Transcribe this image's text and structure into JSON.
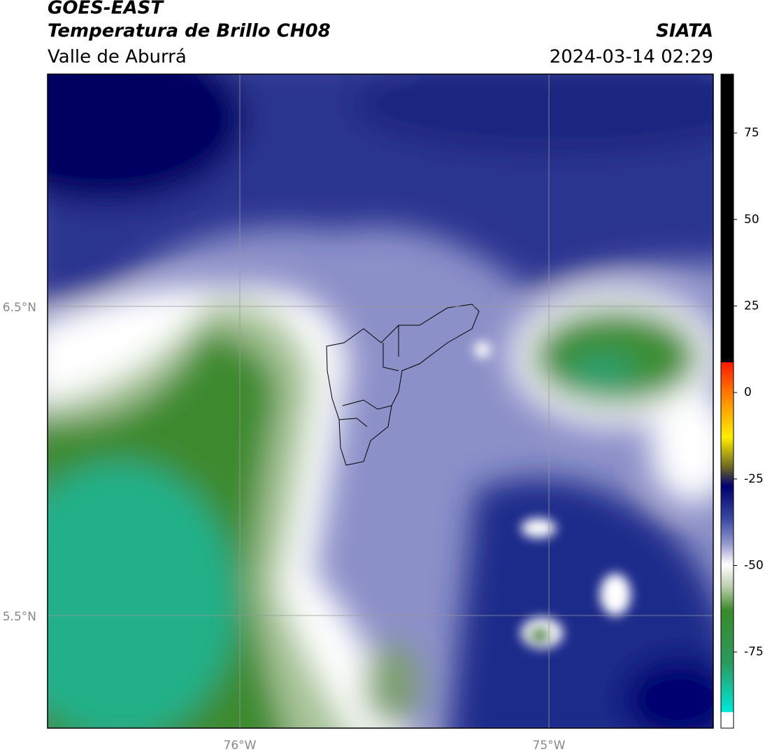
{
  "header": {
    "title": "GOES-EAST",
    "subtitle": "Temperatura de Brillo CH08",
    "region": "Valle de Aburrá",
    "source": "SIATA",
    "datetime": "2024-03-14 02:29"
  },
  "map": {
    "lat_labels": [
      "6.5°N",
      "5.5°N"
    ],
    "lon_labels": [
      "76°W",
      "75°W"
    ]
  },
  "colorbar": {
    "lim": [
      -97,
      92
    ],
    "ticks": [
      75,
      50,
      25,
      0,
      -25,
      -50,
      -75
    ]
  }
}
